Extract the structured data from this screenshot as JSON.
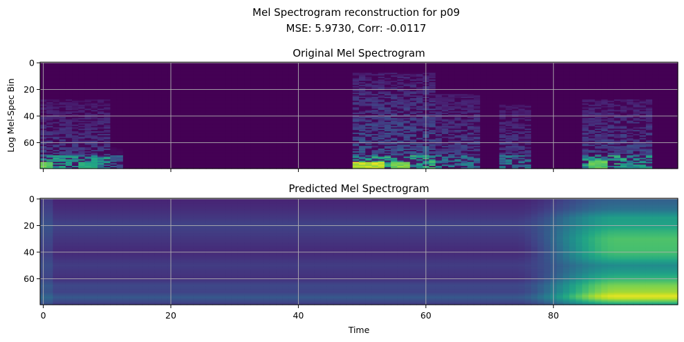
{
  "figure": {
    "title_line1": "Mel Spectrogram reconstruction for p09",
    "title_line2": "MSE: 5.9730, Corr: -0.0117"
  },
  "chart_data": [
    {
      "type": "heatmap",
      "title": "Original Mel Spectrogram",
      "xlabel": "",
      "ylabel": "Log Mel-Spec Bin",
      "xlim": [
        -0.5,
        99.5
      ],
      "ylim": [
        79.5,
        -0.5
      ],
      "x_ticks": [
        0,
        20,
        40,
        60,
        80
      ],
      "y_ticks": [
        0,
        20,
        40,
        60
      ],
      "x_tick_labels_shown": false,
      "grid": true,
      "colormap": "viridis",
      "color_range": [
        0,
        1
      ],
      "low_band_rows": [
        70,
        80
      ],
      "mid_band_rows": [
        0,
        70
      ],
      "segments": [
        {
          "from": 0,
          "to": 11,
          "top_bin": 28,
          "low_level": 0.52,
          "mid_level": 0.22
        },
        {
          "from": 11,
          "to": 13,
          "top_bin": 64,
          "low_level": 0.3,
          "mid_level": 0.06
        },
        {
          "from": 49,
          "to": 62,
          "top_bin": 8,
          "low_level": 0.62,
          "mid_level": 0.3
        },
        {
          "from": 62,
          "to": 69,
          "top_bin": 24,
          "low_level": 0.42,
          "mid_level": 0.24
        },
        {
          "from": 72,
          "to": 77,
          "top_bin": 32,
          "low_level": 0.4,
          "mid_level": 0.22
        },
        {
          "from": 85,
          "to": 96,
          "top_bin": 28,
          "low_level": 0.56,
          "mid_level": 0.26
        }
      ],
      "peaks": [
        {
          "x_from": 0,
          "x_to": 1,
          "y_from": 75,
          "y_to": 79,
          "level": 0.82
        },
        {
          "x_from": 6,
          "x_to": 8,
          "y_from": 75,
          "y_to": 79,
          "level": 0.66
        },
        {
          "x_from": 49,
          "x_to": 53,
          "y_from": 75,
          "y_to": 79,
          "level": 0.98
        },
        {
          "x_from": 55,
          "x_to": 57,
          "y_from": 75,
          "y_to": 79,
          "level": 0.86
        },
        {
          "x_from": 86,
          "x_to": 88,
          "y_from": 74,
          "y_to": 79,
          "level": 0.8
        }
      ]
    },
    {
      "type": "heatmap",
      "title": "Predicted Mel Spectrogram",
      "xlabel": "Time",
      "ylabel": "",
      "xlim": [
        -0.5,
        99.5
      ],
      "ylim": [
        79.5,
        -0.5
      ],
      "x_ticks": [
        0,
        20,
        40,
        60,
        80
      ],
      "y_ticks": [
        0,
        20,
        40,
        60
      ],
      "grid": true,
      "colormap": "viridis",
      "color_range": [
        0,
        1
      ],
      "ramp_start": 74,
      "ramp_end": 90,
      "base_profile": [
        [
          0,
          0.1
        ],
        [
          10,
          0.14
        ],
        [
          20,
          0.2
        ],
        [
          30,
          0.16
        ],
        [
          40,
          0.12
        ],
        [
          50,
          0.18
        ],
        [
          60,
          0.14
        ],
        [
          65,
          0.22
        ],
        [
          70,
          0.2
        ],
        [
          74,
          0.28
        ],
        [
          79,
          0.18
        ]
      ],
      "late_profile": [
        [
          0,
          0.3
        ],
        [
          8,
          0.38
        ],
        [
          14,
          0.56
        ],
        [
          20,
          0.58
        ],
        [
          25,
          0.66
        ],
        [
          30,
          0.72
        ],
        [
          40,
          0.7
        ],
        [
          45,
          0.62
        ],
        [
          50,
          0.48
        ],
        [
          55,
          0.55
        ],
        [
          60,
          0.66
        ],
        [
          65,
          0.8
        ],
        [
          70,
          0.86
        ],
        [
          73,
          0.96
        ],
        [
          75,
          0.9
        ],
        [
          79,
          0.6
        ]
      ]
    }
  ]
}
